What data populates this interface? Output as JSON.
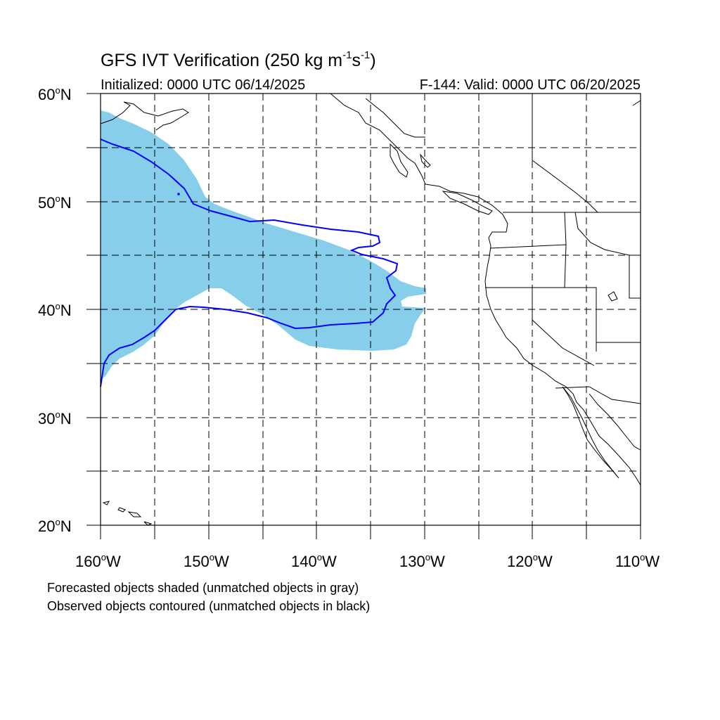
{
  "title": {
    "main": "GFS IVT Verification (250 kg m",
    "sup1": "-1",
    "mid": "s",
    "sup2": "-1",
    "end": ")"
  },
  "init_label": "Initialized: 0000 UTC 06/14/2025",
  "valid_label": "F-144: Valid: 0000 UTC 06/20/2025",
  "lat_labels": [
    {
      "text": "60",
      "suffix": "N"
    },
    {
      "text": "50",
      "suffix": "N"
    },
    {
      "text": "40",
      "suffix": "N"
    },
    {
      "text": "30",
      "suffix": "N"
    },
    {
      "text": "20",
      "suffix": "N"
    }
  ],
  "lon_labels": [
    {
      "text": "160",
      "suffix": "W"
    },
    {
      "text": "150",
      "suffix": "W"
    },
    {
      "text": "140",
      "suffix": "W"
    },
    {
      "text": "130",
      "suffix": "W"
    },
    {
      "text": "120",
      "suffix": "W"
    },
    {
      "text": "110",
      "suffix": "W"
    }
  ],
  "degree_symbol": "o",
  "notes": [
    "Forecasted objects shaded (unmatched objects in gray)",
    "Observed objects contoured (unmatched objects in black)"
  ],
  "map": {
    "lon_range": [
      -160,
      -110
    ],
    "lat_range": [
      20,
      60
    ],
    "grid_step_deg": 5,
    "forecast_fill_color": "#87CEEB",
    "observed_contour_color": "#0000FF",
    "coastline_color": "#000000",
    "gridline_style": "dashed"
  }
}
